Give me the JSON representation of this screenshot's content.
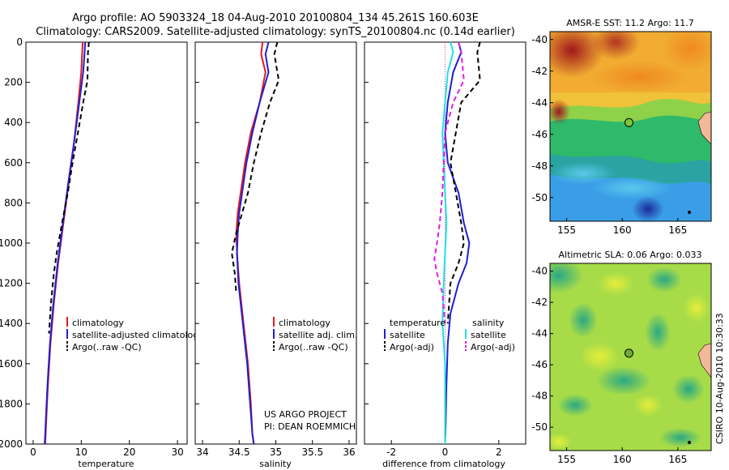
{
  "header": {
    "line1": "Argo profile: AO 5903324_18 04-Aug-2010 20100804_134 45.261S 160.603E",
    "line2": "Climatology: CARS2009. Satellite-adjusted climatology: synTS_20100804.nc (0.14d earlier)"
  },
  "colors": {
    "red": "#e41a1c",
    "blue": "#1f1fd6",
    "black": "#000000",
    "cyan": "#22e0e0",
    "magenta": "#e21ce2"
  },
  "chart_data": [
    {
      "type": "line",
      "panel": "temperature",
      "xlabel": "temperature",
      "ylabel": "",
      "xlim": [
        -1.5,
        32
      ],
      "ylim": [
        2000,
        0
      ],
      "xticks": [
        0,
        10,
        20,
        30
      ],
      "yticks": [
        0,
        200,
        400,
        600,
        800,
        1000,
        1200,
        1400,
        1600,
        1800,
        2000
      ],
      "legend": [
        "climatology",
        "satellite-adjusted climatology",
        "Argo(..raw -QC)"
      ],
      "series": [
        {
          "name": "climatology",
          "color": "red",
          "style": "solid",
          "x": [
            10.3,
            10.2,
            10.0,
            9.4,
            8.5,
            7.4,
            6.3,
            5.2,
            4.3,
            3.6,
            3.1,
            2.8,
            2.6,
            2.5
          ],
          "y": [
            0,
            50,
            150,
            300,
            500,
            700,
            900,
            1100,
            1300,
            1500,
            1700,
            1850,
            1950,
            2000
          ]
        },
        {
          "name": "satellite-adjusted climatology",
          "color": "blue",
          "style": "solid",
          "x": [
            10.8,
            10.7,
            10.4,
            9.6,
            8.5,
            7.3,
            6.2,
            5.1,
            4.2,
            3.5,
            3.0,
            2.7,
            2.5,
            2.4
          ],
          "y": [
            0,
            50,
            150,
            300,
            500,
            700,
            900,
            1100,
            1300,
            1500,
            1700,
            1850,
            1950,
            2000
          ]
        },
        {
          "name": "Argo(..raw -QC)",
          "color": "black",
          "style": "dashed",
          "x": [
            11.6,
            11.4,
            11.3,
            10.4,
            9.3,
            8.2,
            7.2,
            6.0,
            4.9,
            4.3,
            3.7,
            3.3
          ],
          "y": [
            0,
            50,
            190,
            300,
            450,
            600,
            750,
            900,
            1050,
            1150,
            1300,
            1450
          ]
        }
      ]
    },
    {
      "type": "line",
      "panel": "salinity",
      "xlabel": "salinity",
      "ylabel": "",
      "xlim": [
        33.9,
        36.1
      ],
      "ylim": [
        2000,
        0
      ],
      "xticks": [
        34,
        34.5,
        35,
        35.5,
        36
      ],
      "legend": [
        "climatology",
        "satellite adj. clim.",
        "Argo(..raw -QC)"
      ],
      "annotation": [
        "US ARGO PROJECT",
        "PI: DEAN ROEMMICH"
      ],
      "series": [
        {
          "name": "climatology",
          "color": "red",
          "style": "solid",
          "x": [
            34.82,
            34.8,
            34.86,
            34.78,
            34.66,
            34.58,
            34.52,
            34.48,
            34.46,
            34.47,
            34.5,
            34.56,
            34.62,
            34.66,
            34.68,
            34.7
          ],
          "y": [
            0,
            60,
            150,
            300,
            450,
            600,
            750,
            850,
            950,
            1050,
            1200,
            1400,
            1600,
            1800,
            1950,
            2000
          ]
        },
        {
          "name": "satellite adj. clim.",
          "color": "blue",
          "style": "solid",
          "x": [
            34.9,
            34.86,
            34.9,
            34.78,
            34.68,
            34.6,
            34.54,
            34.5,
            34.48,
            34.47,
            34.49,
            34.55,
            34.61,
            34.65,
            34.68,
            34.7
          ],
          "y": [
            0,
            60,
            150,
            300,
            450,
            600,
            750,
            850,
            950,
            1050,
            1200,
            1400,
            1600,
            1800,
            1950,
            2000
          ]
        },
        {
          "name": "Argo(..raw -QC)",
          "color": "black",
          "style": "dashed",
          "x": [
            35.02,
            34.98,
            35.04,
            34.92,
            34.8,
            34.7,
            34.62,
            34.54,
            34.46,
            34.4,
            34.44,
            34.46
          ],
          "y": [
            0,
            60,
            190,
            300,
            450,
            600,
            750,
            850,
            950,
            1050,
            1150,
            1250
          ]
        }
      ]
    },
    {
      "type": "line",
      "panel": "difference",
      "xlabel": "difference from climatology",
      "ylabel": "",
      "xlim": [
        -3,
        3
      ],
      "ylim": [
        2000,
        0
      ],
      "xticks": [
        -2,
        0,
        2
      ],
      "legend_left_title": "temperature",
      "legend_right_title": "salinity",
      "legend": [
        "satellite",
        "Argo(-adj)",
        "satellite",
        "Argo(-adj)"
      ],
      "series": [
        {
          "name": "satellite",
          "group": "temperature",
          "color": "blue",
          "style": "solid",
          "x": [
            0.5,
            0.6,
            0.3,
            0.1,
            0.0,
            0.1,
            0.5,
            0.7,
            0.9,
            0.8,
            0.5,
            0.2,
            0.1,
            0.05,
            0.02,
            0.0
          ],
          "y": [
            0,
            50,
            150,
            300,
            450,
            600,
            750,
            900,
            1000,
            1100,
            1200,
            1350,
            1500,
            1700,
            1900,
            2000
          ]
        },
        {
          "name": "Argo(-adj)",
          "group": "temperature",
          "color": "black",
          "style": "dashed",
          "x": [
            1.3,
            1.2,
            1.3,
            0.6,
            0.4,
            0.2,
            0.4,
            0.6,
            0.7,
            0.5,
            0.2,
            0.1
          ],
          "y": [
            0,
            50,
            190,
            300,
            450,
            600,
            750,
            900,
            1000,
            1100,
            1200,
            1400
          ]
        },
        {
          "name": "satellite",
          "group": "salinity",
          "color": "cyan",
          "style": "solid",
          "x": [
            0.2,
            0.3,
            0.1,
            0.0,
            -0.1,
            -0.05,
            0.0,
            0.05,
            0.0,
            -0.05,
            -0.1,
            0.0,
            0.0,
            0.0
          ],
          "y": [
            0,
            50,
            150,
            300,
            450,
            600,
            750,
            900,
            1050,
            1200,
            1400,
            1600,
            1800,
            2000
          ]
        },
        {
          "name": "Argo(-adj)",
          "group": "salinity",
          "color": "magenta",
          "style": "dashed",
          "x": [
            0.5,
            0.6,
            0.7,
            0.3,
            0.0,
            -0.05,
            -0.1,
            -0.2,
            -0.3,
            -0.4,
            -0.3,
            -0.1,
            0.0
          ],
          "y": [
            0,
            50,
            190,
            300,
            450,
            600,
            750,
            900,
            1000,
            1080,
            1150,
            1250,
            1400
          ]
        }
      ]
    },
    {
      "type": "heatmap",
      "panel": "sst_map",
      "title": "AMSR-E SST: 11.2 Argo: 11.7",
      "xlim": [
        153.5,
        168
      ],
      "ylim": [
        -51.5,
        -39.5
      ],
      "xticks": [
        155,
        160,
        165
      ],
      "yticks": [
        -40,
        -42,
        -44,
        -46,
        -48,
        -50
      ],
      "marker": {
        "lon": 160.603,
        "lat": -45.261
      }
    },
    {
      "type": "heatmap",
      "panel": "sla_map",
      "title": "Altimetric SLA: 0.06 Argo: 0.033",
      "xlim": [
        153.5,
        168
      ],
      "ylim": [
        -51.5,
        -39.5
      ],
      "xticks": [
        155,
        160,
        165
      ],
      "yticks": [
        -40,
        -42,
        -44,
        -46,
        -48,
        -50
      ],
      "marker": {
        "lon": 160.603,
        "lat": -45.261
      }
    }
  ],
  "footer": {
    "stamp": "CSIRO 10-Aug-2010 10:30:33"
  }
}
